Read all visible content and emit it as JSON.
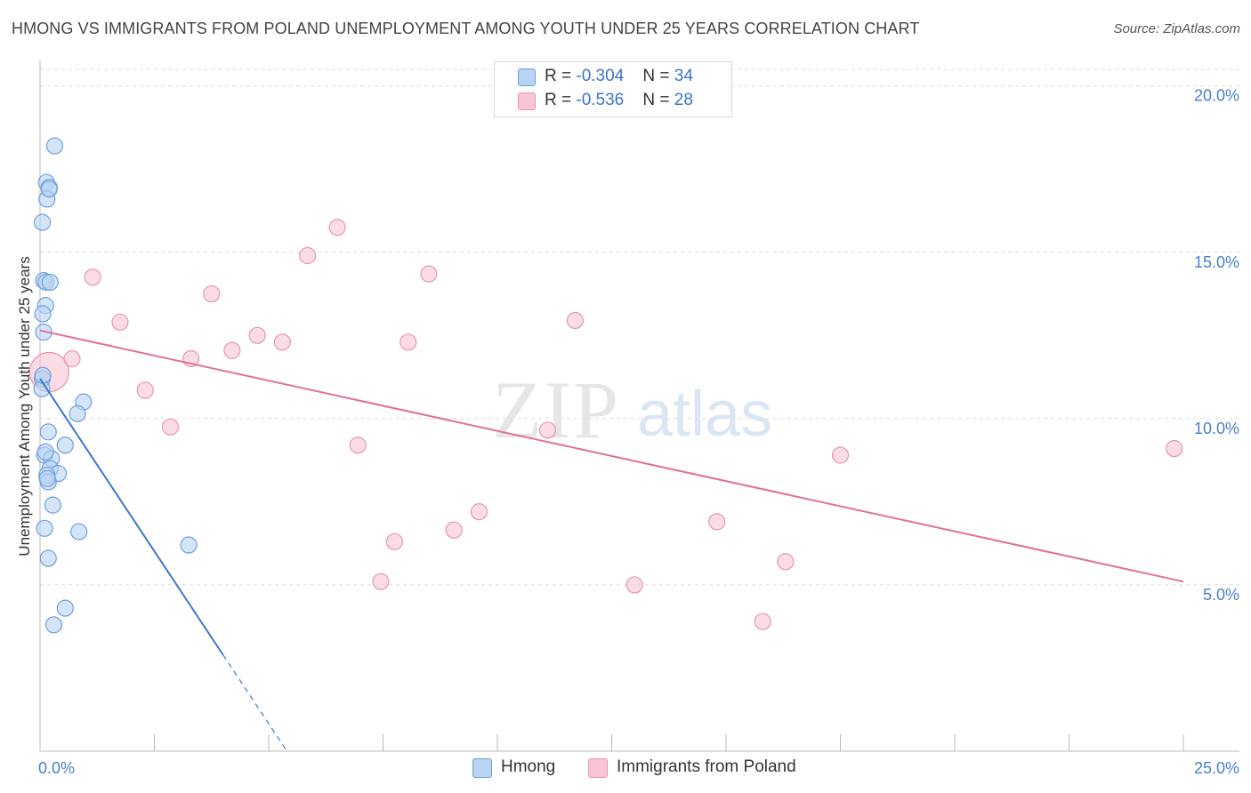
{
  "title": "HMONG VS IMMIGRANTS FROM POLAND UNEMPLOYMENT AMONG YOUTH UNDER 25 YEARS CORRELATION CHART",
  "source": "Source: ZipAtlas.com",
  "watermark": {
    "zip": "ZIP",
    "atlas": "atlas"
  },
  "legend": {
    "rows": [
      {
        "r_label": "R = ",
        "r_value": "-0.304",
        "n_label": "N = ",
        "n_value": "34"
      },
      {
        "r_label": "R = ",
        "r_value": "-0.536",
        "n_label": "N = ",
        "n_value": "28"
      }
    ]
  },
  "colors": {
    "hmong_fill": "#b9d3f3",
    "hmong_stroke": "#6e9fdc",
    "hmong_line": "#3a78d0",
    "poland_fill": "#f8c5d4",
    "poland_stroke": "#e796ae",
    "poland_line": "#e0709a",
    "tick_label": "#4a7fcc",
    "grid": "#dcdcdc"
  },
  "chart_data": {
    "type": "scatter",
    "title": "HMONG VS IMMIGRANTS FROM POLAND UNEMPLOYMENT AMONG YOUTH UNDER 25 YEARS CORRELATION CHART",
    "xlabel": "",
    "ylabel": "Unemployment Among Youth under 25 years",
    "xlim": [
      0,
      25
    ],
    "ylim": [
      0,
      20.5
    ],
    "x_tick_labels": [
      "0.0%",
      "25.0%"
    ],
    "y_ticks": [
      {
        "value": 5,
        "label": "5.0%"
      },
      {
        "value": 10,
        "label": "10.0%"
      },
      {
        "value": 15,
        "label": "15.0%"
      },
      {
        "value": 20,
        "label": "20.0%"
      }
    ],
    "series": [
      {
        "name": "Hmong",
        "points": [
          [
            0.32,
            18.2
          ],
          [
            0.14,
            17.1
          ],
          [
            0.2,
            16.95
          ],
          [
            0.15,
            16.6
          ],
          [
            0.05,
            15.9
          ],
          [
            0.08,
            14.15
          ],
          [
            0.13,
            14.1
          ],
          [
            0.12,
            13.4
          ],
          [
            0.06,
            13.15
          ],
          [
            0.08,
            12.6
          ],
          [
            0.05,
            11.2
          ],
          [
            0.04,
            10.9
          ],
          [
            0.95,
            10.5
          ],
          [
            0.82,
            10.15
          ],
          [
            0.18,
            9.6
          ],
          [
            0.55,
            9.2
          ],
          [
            0.1,
            8.9
          ],
          [
            0.25,
            8.8
          ],
          [
            0.22,
            8.5
          ],
          [
            0.4,
            8.35
          ],
          [
            0.15,
            8.3
          ],
          [
            0.18,
            8.1
          ],
          [
            0.28,
            7.4
          ],
          [
            0.1,
            6.7
          ],
          [
            0.85,
            6.6
          ],
          [
            3.25,
            6.2
          ],
          [
            0.18,
            5.8
          ],
          [
            0.55,
            4.3
          ],
          [
            0.3,
            3.8
          ],
          [
            0.12,
            9.0
          ],
          [
            0.22,
            14.1
          ],
          [
            0.2,
            16.9
          ],
          [
            0.06,
            11.3
          ],
          [
            0.16,
            8.2
          ]
        ],
        "trend": {
          "x0": 0,
          "y0": 11.2,
          "x1": 4.0,
          "y1": 2.9,
          "dash_x1": 5.4,
          "dash_y1": 0
        }
      },
      {
        "name": "Immigrants from Poland",
        "points": [
          [
            0.2,
            11.4
          ],
          [
            0.7,
            11.8
          ],
          [
            1.15,
            14.25
          ],
          [
            1.75,
            12.9
          ],
          [
            2.3,
            10.85
          ],
          [
            2.85,
            9.75
          ],
          [
            3.3,
            11.8
          ],
          [
            3.75,
            13.75
          ],
          [
            4.2,
            12.05
          ],
          [
            4.75,
            12.5
          ],
          [
            5.3,
            12.3
          ],
          [
            5.85,
            14.9
          ],
          [
            6.5,
            15.75
          ],
          [
            6.95,
            9.2
          ],
          [
            7.45,
            5.1
          ],
          [
            7.75,
            6.3
          ],
          [
            8.05,
            12.3
          ],
          [
            8.5,
            14.35
          ],
          [
            9.05,
            6.65
          ],
          [
            9.6,
            7.2
          ],
          [
            11.1,
            9.65
          ],
          [
            11.7,
            12.95
          ],
          [
            13.0,
            5.0
          ],
          [
            14.8,
            6.9
          ],
          [
            15.8,
            3.9
          ],
          [
            16.3,
            5.7
          ],
          [
            17.5,
            8.9
          ],
          [
            24.8,
            9.1
          ]
        ],
        "trend": {
          "x0": 0,
          "y0": 12.65,
          "x1": 25.0,
          "y1": 5.1
        }
      }
    ],
    "legend_position": "top-center",
    "bottom_legend": [
      "Hmong",
      "Immigrants from Poland"
    ]
  }
}
